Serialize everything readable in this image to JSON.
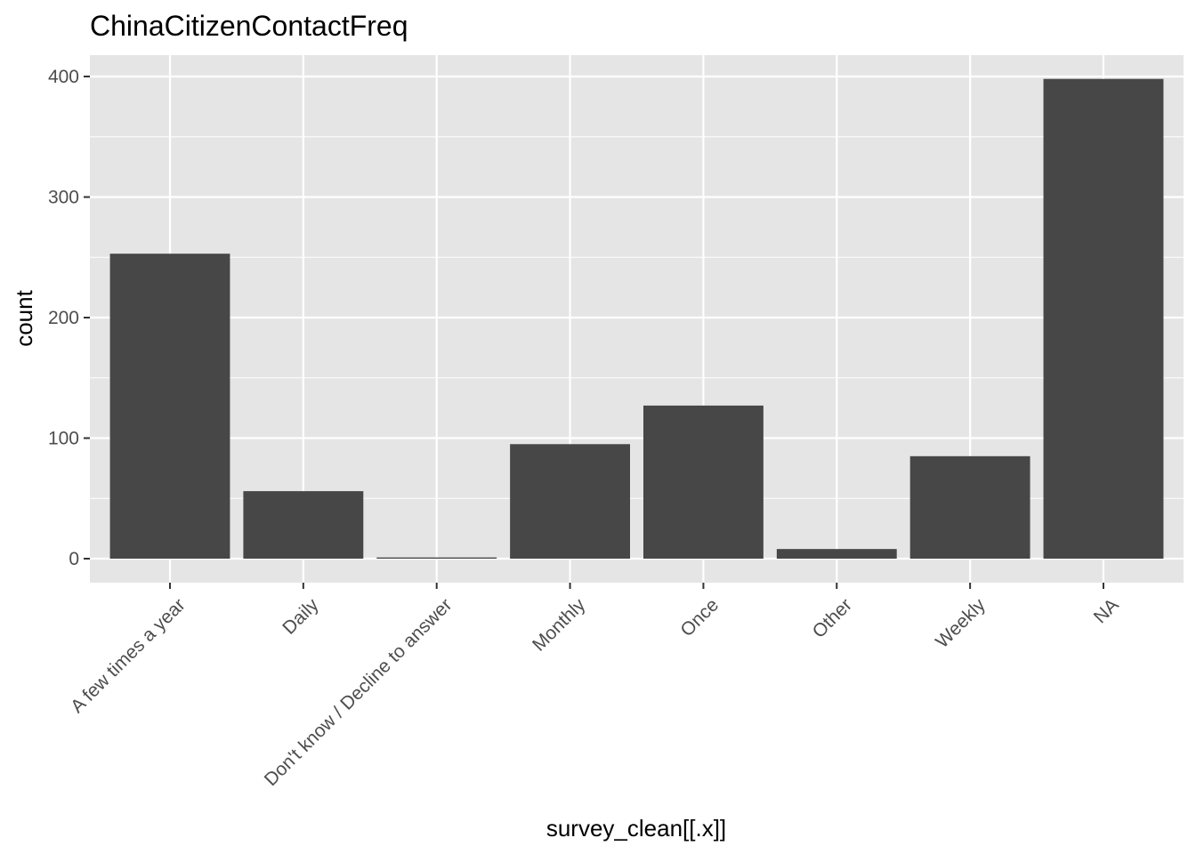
{
  "chart_data": {
    "type": "bar",
    "title": "ChinaCitizenContactFreq",
    "xlabel": "survey_clean[[.x]]",
    "ylabel": "count",
    "categories": [
      "A few times a year",
      "Daily",
      "Don't know / Decline to answer",
      "Monthly",
      "Once",
      "Other",
      "Weekly",
      "NA"
    ],
    "values": [
      253,
      56,
      1,
      95,
      127,
      8,
      85,
      398
    ],
    "ylim": [
      0,
      400
    ],
    "yticks": [
      0,
      100,
      200,
      300,
      400
    ],
    "grid": true,
    "legend": "none",
    "colors": {
      "bar": "#474747",
      "panel": "#e5e5e5",
      "grid": "#ffffff"
    }
  }
}
